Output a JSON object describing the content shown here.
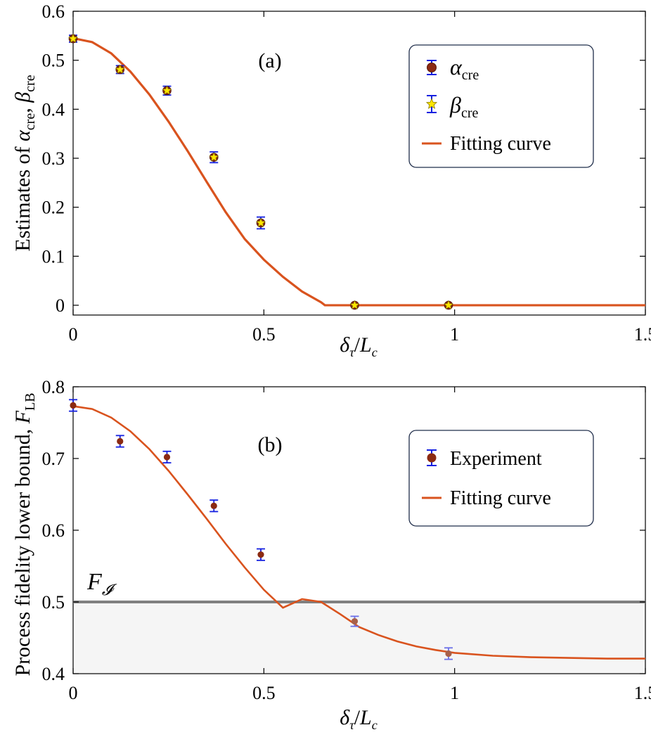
{
  "chart_data": [
    {
      "type": "scatter",
      "panel_label": "(a)",
      "xlabel": "δτ/Lc",
      "ylabel": "Estimates of αcre, βcre",
      "xlim": [
        0,
        1.5
      ],
      "ylim": [
        -0.02,
        0.6
      ],
      "xticks": [
        0,
        0.5,
        1,
        1.5
      ],
      "xtick_labels": [
        "0",
        "0.5",
        "1",
        "1.5"
      ],
      "yticks": [
        0,
        0.1,
        0.2,
        0.3,
        0.4,
        0.5,
        0.6
      ],
      "ytick_labels": [
        "0",
        "0.1",
        "0.2",
        "0.3",
        "0.4",
        "0.5",
        "0.6"
      ],
      "legend_position": "top-right",
      "series": [
        {
          "name": "αcre",
          "legend_symbol": "α",
          "legend_sub": "cre",
          "marker": "circle",
          "color": "#8b2a12",
          "x": [
            0,
            0.123,
            0.246,
            0.369,
            0.492,
            0.738,
            0.984
          ],
          "y": [
            0.544,
            0.481,
            0.438,
            0.302,
            0.168,
            0.0,
            0.0
          ],
          "err": [
            0.007,
            0.008,
            0.009,
            0.011,
            0.012,
            0.002,
            0.002
          ]
        },
        {
          "name": "βcre",
          "legend_symbol": "β",
          "legend_sub": "cre",
          "marker": "star",
          "color": "#ffe600",
          "x": [
            0,
            0.123,
            0.246,
            0.369,
            0.492,
            0.738,
            0.984
          ],
          "y": [
            0.544,
            0.481,
            0.438,
            0.302,
            0.168,
            0.0,
            0.0
          ],
          "err": [
            0.007,
            0.008,
            0.009,
            0.011,
            0.012,
            0.002,
            0.002
          ]
        },
        {
          "name": "Fitting curve",
          "type": "line",
          "color": "#d9531e",
          "x": [
            0,
            0.05,
            0.1,
            0.15,
            0.2,
            0.25,
            0.3,
            0.35,
            0.4,
            0.45,
            0.5,
            0.55,
            0.6,
            0.65,
            0.66,
            0.7,
            0.8,
            0.9,
            1.0,
            1.1,
            1.2,
            1.3,
            1.4,
            1.5
          ],
          "y": [
            0.545,
            0.537,
            0.514,
            0.477,
            0.43,
            0.375,
            0.315,
            0.252,
            0.19,
            0.135,
            0.093,
            0.058,
            0.028,
            0.006,
            0.0,
            0.0,
            0.0,
            0.0,
            0.0,
            0.0,
            0.0,
            0.0,
            0.0,
            0.0
          ]
        }
      ]
    },
    {
      "type": "scatter",
      "panel_label": "(b)",
      "xlabel": "δτ/Lc",
      "ylabel": "Process fidelity lower bound, FLB",
      "xlim": [
        0,
        1.5
      ],
      "ylim": [
        0.4,
        0.8
      ],
      "xticks": [
        0,
        0.5,
        1,
        1.5
      ],
      "xtick_labels": [
        "0",
        "0.5",
        "1",
        "1.5"
      ],
      "yticks": [
        0.4,
        0.5,
        0.6,
        0.7,
        0.8
      ],
      "ytick_labels": [
        "0.4",
        "0.5",
        "0.6",
        "0.7",
        "0.8"
      ],
      "threshold": {
        "y": 0.5,
        "label": "F",
        "label_sub": "𝓘",
        "color": "#808080"
      },
      "legend_position": "top-right",
      "series": [
        {
          "name": "Experiment",
          "marker": "circle",
          "color": "#8b2a12",
          "x": [
            0,
            0.123,
            0.246,
            0.369,
            0.492,
            0.738,
            0.984
          ],
          "y": [
            0.774,
            0.724,
            0.702,
            0.634,
            0.566,
            0.473,
            0.428
          ],
          "err": [
            0.008,
            0.008,
            0.008,
            0.008,
            0.008,
            0.007,
            0.008
          ]
        },
        {
          "name": "Fitting curve",
          "type": "line",
          "color": "#d9531e",
          "color_below_threshold": "#e69070",
          "x": [
            0,
            0.05,
            0.1,
            0.15,
            0.2,
            0.25,
            0.3,
            0.35,
            0.4,
            0.45,
            0.5,
            0.55,
            0.6,
            0.65,
            0.7,
            0.75,
            0.8,
            0.85,
            0.9,
            0.95,
            1.0,
            1.1,
            1.2,
            1.3,
            1.4,
            1.5
          ],
          "y": [
            0.773,
            0.769,
            0.757,
            0.738,
            0.713,
            0.683,
            0.65,
            0.616,
            0.581,
            0.548,
            0.517,
            0.492,
            0.504,
            0.5,
            0.483,
            0.465,
            0.454,
            0.445,
            0.438,
            0.433,
            0.429,
            0.425,
            0.423,
            0.422,
            0.421,
            0.421
          ]
        }
      ]
    }
  ]
}
